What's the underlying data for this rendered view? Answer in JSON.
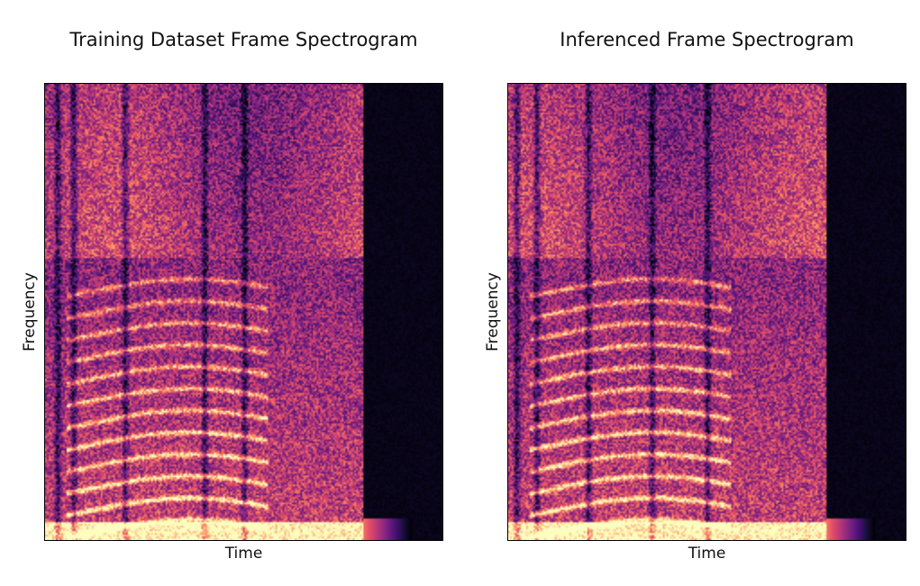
{
  "chart_data": [
    {
      "type": "heatmap",
      "title": "Training Dataset Frame Spectrogram",
      "xlabel": "Time",
      "ylabel": "Frequency",
      "colormap": "magma",
      "grid": false,
      "axis_ticks": false,
      "colors": {
        "background": "#ffffff",
        "low": "#000004",
        "mid": "#b73779",
        "high": "#fcfdbf"
      }
    },
    {
      "type": "heatmap",
      "title": "Inferenced Frame Spectrogram",
      "xlabel": "Time",
      "ylabel": "Frequency",
      "colormap": "magma",
      "grid": false,
      "axis_ticks": false,
      "colors": {
        "background": "#ffffff",
        "low": "#000004",
        "mid": "#b73779",
        "high": "#fcfdbf"
      }
    }
  ]
}
